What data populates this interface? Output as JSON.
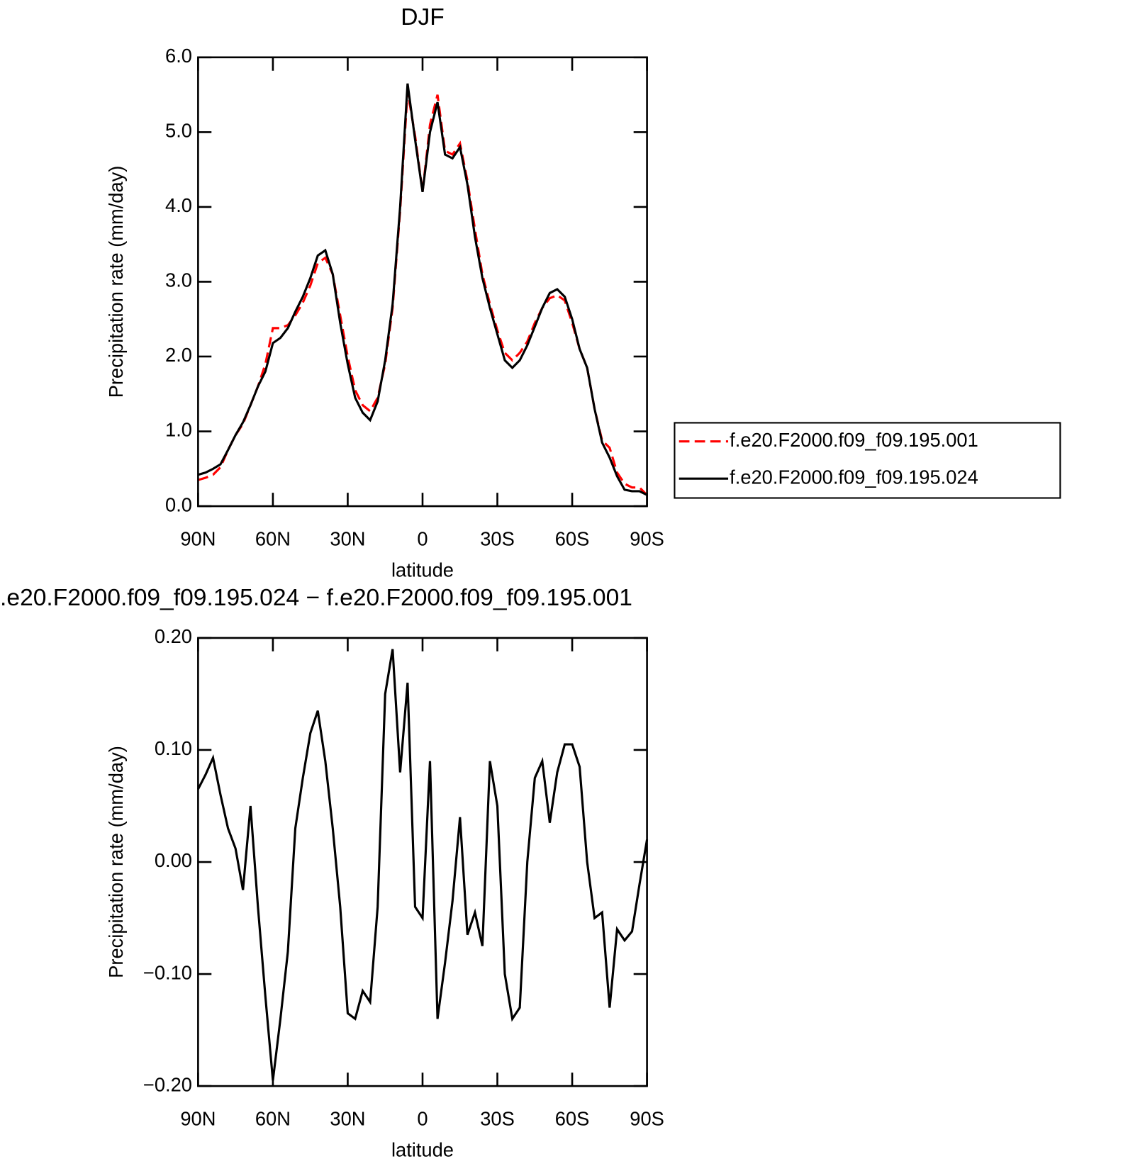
{
  "chart_data": [
    {
      "type": "line",
      "title": "DJF",
      "x_label": "latitude",
      "y_label": "Precipitation rate (mm/day)",
      "x": [
        90,
        87,
        84,
        81,
        78,
        75,
        72,
        69,
        66,
        63,
        60,
        57,
        54,
        51,
        48,
        45,
        42,
        39,
        36,
        33,
        30,
        27,
        24,
        21,
        18,
        15,
        12,
        9,
        6,
        3,
        0,
        -3,
        -6,
        -9,
        -12,
        -15,
        -18,
        -21,
        -24,
        -27,
        -30,
        -33,
        -36,
        -39,
        -42,
        -45,
        -48,
        -51,
        -54,
        -57,
        -60,
        -63,
        -66,
        -69,
        -72,
        -75,
        -78,
        -81,
        -84,
        -87,
        -90
      ],
      "series": [
        {
          "name": "f.e20.F2000.f09_f09.195.001",
          "color": "#ff0000",
          "line_style": "dashed",
          "values": [
            0.35,
            0.38,
            0.42,
            0.52,
            0.75,
            0.95,
            1.1,
            1.35,
            1.6,
            1.9,
            2.38,
            2.38,
            2.42,
            2.55,
            2.72,
            2.95,
            3.25,
            3.32,
            3.1,
            2.55,
            2.0,
            1.55,
            1.35,
            1.27,
            1.45,
            1.9,
            2.65,
            3.95,
            5.55,
            4.95,
            4.2,
            5.1,
            5.5,
            4.75,
            4.7,
            4.85,
            4.35,
            3.7,
            3.1,
            2.7,
            2.35,
            2.05,
            1.95,
            2.05,
            2.2,
            2.45,
            2.65,
            2.78,
            2.82,
            2.75,
            2.45,
            2.1,
            1.85,
            1.3,
            0.88,
            0.78,
            0.45,
            0.3,
            0.25,
            0.25,
            0.15
          ]
        },
        {
          "name": "f.e20.F2000.f09_f09.195.024",
          "color": "#000000",
          "line_style": "solid",
          "values": [
            0.42,
            0.45,
            0.5,
            0.56,
            0.75,
            0.95,
            1.12,
            1.35,
            1.6,
            1.8,
            2.18,
            2.25,
            2.38,
            2.6,
            2.8,
            3.05,
            3.35,
            3.42,
            3.1,
            2.45,
            1.9,
            1.45,
            1.25,
            1.15,
            1.4,
            1.95,
            2.7,
            4.0,
            5.65,
            4.9,
            4.2,
            5.0,
            5.4,
            4.7,
            4.65,
            4.8,
            4.3,
            3.6,
            3.05,
            2.65,
            2.3,
            1.95,
            1.85,
            1.95,
            2.15,
            2.4,
            2.65,
            2.85,
            2.9,
            2.8,
            2.5,
            2.1,
            1.85,
            1.3,
            0.85,
            0.65,
            0.4,
            0.22,
            0.2,
            0.2,
            0.15
          ]
        }
      ],
      "xlim": [
        90,
        -90
      ],
      "xticks": [
        {
          "value": 90,
          "label": "90N"
        },
        {
          "value": 60,
          "label": "60N"
        },
        {
          "value": 30,
          "label": "30N"
        },
        0,
        {
          "value": -30,
          "label": "30S"
        },
        {
          "value": -60,
          "label": "60S"
        },
        {
          "value": -90,
          "label": "90S"
        }
      ],
      "ylim": [
        0,
        6
      ],
      "yticks": [
        {
          "value": 0,
          "label": "0.0"
        },
        {
          "value": 1,
          "label": "1.0"
        },
        {
          "value": 2,
          "label": "2.0"
        },
        {
          "value": 3,
          "label": "3.0"
        },
        {
          "value": 4,
          "label": "4.0"
        },
        {
          "value": 5,
          "label": "5.0"
        },
        {
          "value": 6,
          "label": "6.0"
        }
      ],
      "legend": "right"
    },
    {
      "type": "line",
      "title": ".e20.F2000.f09_f09.195.024 − f.e20.F2000.f09_f09.195.001",
      "x_label": "latitude",
      "y_label": "Precipitation rate (mm/day)",
      "x": [
        90,
        87,
        84,
        81,
        78,
        75,
        72,
        69,
        66,
        63,
        60,
        57,
        54,
        51,
        48,
        45,
        42,
        39,
        36,
        33,
        30,
        27,
        24,
        21,
        18,
        15,
        12,
        9,
        6,
        3,
        0,
        -3,
        -6,
        -9,
        -12,
        -15,
        -18,
        -21,
        -24,
        -27,
        -30,
        -33,
        -36,
        -39,
        -42,
        -45,
        -48,
        -51,
        -54,
        -57,
        -60,
        -63,
        -66,
        -69,
        -72,
        -75,
        -78,
        -81,
        -84,
        -87,
        -90
      ],
      "color": "#000000",
      "values": [
        0.065,
        0.078,
        0.093,
        0.06,
        0.03,
        0.012,
        -0.025,
        0.05,
        -0.04,
        -0.12,
        -0.195,
        -0.14,
        -0.08,
        0.03,
        0.075,
        0.115,
        0.135,
        0.09,
        0.03,
        -0.04,
        -0.135,
        -0.14,
        -0.115,
        -0.125,
        -0.04,
        0.15,
        0.19,
        0.08,
        0.16,
        -0.04,
        -0.05,
        0.09,
        -0.14,
        -0.09,
        -0.035,
        0.04,
        -0.065,
        -0.045,
        -0.075,
        0.09,
        0.05,
        -0.1,
        -0.14,
        -0.13,
        0.0,
        0.075,
        0.09,
        0.035,
        0.08,
        0.105,
        0.105,
        0.085,
        0.0,
        -0.05,
        -0.045,
        -0.13,
        -0.06,
        -0.07,
        -0.062,
        -0.02,
        0.02
      ],
      "xlim": [
        90,
        -90
      ],
      "xticks": [
        {
          "value": 90,
          "label": "90N"
        },
        {
          "value": 60,
          "label": "60N"
        },
        {
          "value": 30,
          "label": "30N"
        },
        0,
        {
          "value": -30,
          "label": "30S"
        },
        {
          "value": -60,
          "label": "60S"
        },
        {
          "value": -90,
          "label": "90S"
        }
      ],
      "ylim": [
        -0.2,
        0.2
      ],
      "yticks": [
        {
          "value": -0.2,
          "label": "−0.20"
        },
        {
          "value": -0.1,
          "label": "−0.10"
        },
        {
          "value": 0,
          "label": "0.00"
        },
        {
          "value": 0.1,
          "label": "0.10"
        },
        {
          "value": 0.2,
          "label": "0.20"
        }
      ]
    }
  ]
}
